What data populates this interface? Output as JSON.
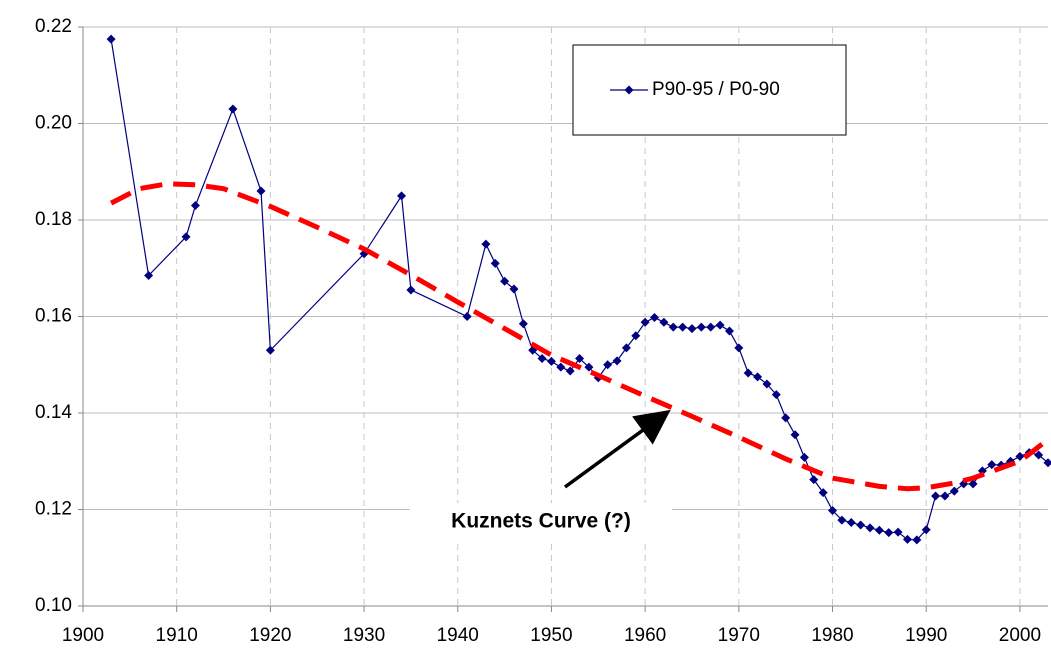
{
  "chart_data": {
    "type": "line",
    "annotation": "Kuznets Curve (?)",
    "xlim": [
      1900,
      2003
    ],
    "ylim": [
      0.1,
      0.22
    ],
    "xticks": [
      1900,
      1910,
      1920,
      1930,
      1940,
      1950,
      1960,
      1970,
      1980,
      1990,
      2000
    ],
    "yticks": [
      {
        "value": 0.1,
        "label": "0.10"
      },
      {
        "value": 0.12,
        "label": "0.12"
      },
      {
        "value": 0.14,
        "label": "0.14"
      },
      {
        "value": 0.16,
        "label": "0.16"
      },
      {
        "value": 0.18,
        "label": "0.18"
      },
      {
        "value": 0.2,
        "label": "0.20"
      },
      {
        "value": 0.22,
        "label": "0.22"
      }
    ],
    "grid": true,
    "legend": "top-center",
    "series": [
      {
        "name": "P90-95 / P0-90",
        "color": "#000080",
        "x": [
          1903,
          1907,
          1911,
          1912,
          1916,
          1919,
          1920,
          1930,
          1934,
          1935,
          1941,
          1943,
          1944,
          1945,
          1946,
          1947,
          1948,
          1949,
          1950,
          1951,
          1952,
          1953,
          1954,
          1955,
          1956,
          1957,
          1958,
          1959,
          1960,
          1961,
          1962,
          1963,
          1964,
          1965,
          1966,
          1967,
          1968,
          1969,
          1970,
          1971,
          1972,
          1973,
          1974,
          1975,
          1976,
          1977,
          1978,
          1979,
          1980,
          1981,
          1982,
          1983,
          1984,
          1985,
          1986,
          1987,
          1988,
          1989,
          1990,
          1991,
          1992,
          1993,
          1994,
          1995,
          1996,
          1997,
          1998,
          1999,
          2000,
          2001,
          2002,
          2003
        ],
        "values": [
          0.2175,
          0.1685,
          0.1765,
          0.183,
          0.203,
          0.186,
          0.153,
          0.173,
          0.185,
          0.1655,
          0.16,
          0.175,
          0.171,
          0.1673,
          0.1657,
          0.1585,
          0.153,
          0.1513,
          0.1507,
          0.1495,
          0.1487,
          0.1513,
          0.1495,
          0.1473,
          0.15,
          0.1508,
          0.1535,
          0.156,
          0.1588,
          0.1598,
          0.1588,
          0.1578,
          0.1578,
          0.1575,
          0.1578,
          0.1578,
          0.1582,
          0.157,
          0.1535,
          0.1483,
          0.1475,
          0.146,
          0.1438,
          0.139,
          0.1355,
          0.1308,
          0.1262,
          0.1235,
          0.1198,
          0.1178,
          0.1173,
          0.1168,
          0.1162,
          0.1157,
          0.1152,
          0.1153,
          0.1138,
          0.1137,
          0.1158,
          0.1228,
          0.1228,
          0.1238,
          0.1253,
          0.1253,
          0.128,
          0.1293,
          0.1292,
          0.13,
          0.131,
          0.1318,
          0.1313,
          0.1297
        ]
      },
      {
        "color": "#ff0000",
        "style": "dashed",
        "x": [
          1903,
          1906,
          1909,
          1912,
          1915,
          1920,
          1925,
          1930,
          1935,
          1940,
          1945,
          1950,
          1955,
          1960,
          1965,
          1970,
          1975,
          1980,
          1985,
          1988,
          1990,
          1993,
          1995,
          2000,
          2003
        ],
        "values": [
          0.1835,
          0.1865,
          0.1875,
          0.1873,
          0.1865,
          0.1828,
          0.1785,
          0.174,
          0.1686,
          0.163,
          0.1575,
          0.152,
          0.1478,
          0.1435,
          0.1393,
          0.135,
          0.1305,
          0.1265,
          0.1248,
          0.1243,
          0.1245,
          0.1255,
          0.1265,
          0.13,
          0.1345
        ]
      }
    ]
  }
}
